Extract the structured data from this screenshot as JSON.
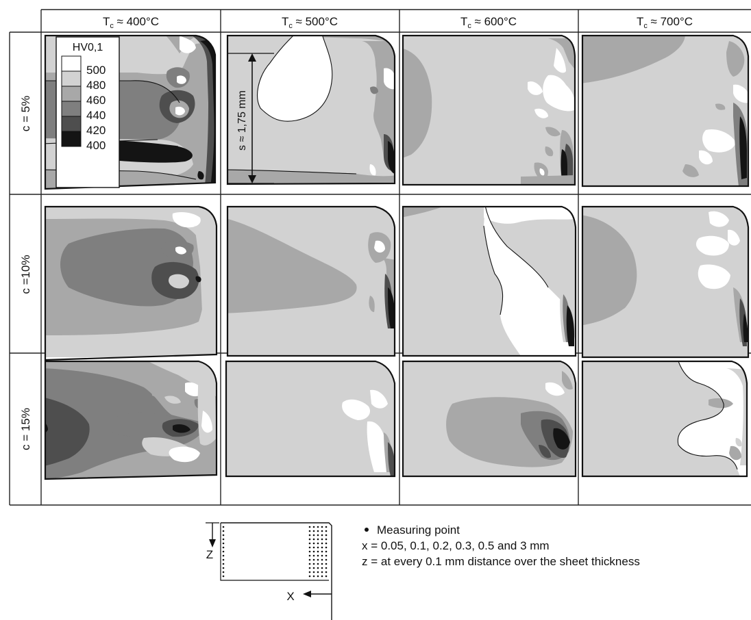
{
  "columns": [
    {
      "label_main": "T",
      "label_sub": "c",
      "label_rest": " ≈ 400°C"
    },
    {
      "label_main": "T",
      "label_sub": "c",
      "label_rest": " ≈ 500°C"
    },
    {
      "label_main": "T",
      "label_sub": "c",
      "label_rest": " ≈ 600°C"
    },
    {
      "label_main": "T",
      "label_sub": "c",
      "label_rest": " ≈ 700°C"
    }
  ],
  "rows": [
    {
      "label": "c = 5%"
    },
    {
      "label": "c =10%"
    },
    {
      "label": "c = 15%"
    }
  ],
  "legend": {
    "title": "HV0,1",
    "levels": [
      "500",
      "480",
      "460",
      "440",
      "420",
      "400"
    ],
    "colors": [
      "#ffffff",
      "#d2d2d2",
      "#a8a8a8",
      "#7f7f7f",
      "#4e4e4e",
      "#141414"
    ]
  },
  "thickness_label": "s ≈ 1,75 mm",
  "schema": {
    "z_label": "Z",
    "x_label": "X"
  },
  "notes": {
    "measuring_point": "Measuring point",
    "x_line": "x = 0.05, 0.1, 0.2, 0.3, 0.5 and 3 mm",
    "z_line": "z = at every 0.1 mm distance over the sheet thickness"
  }
}
